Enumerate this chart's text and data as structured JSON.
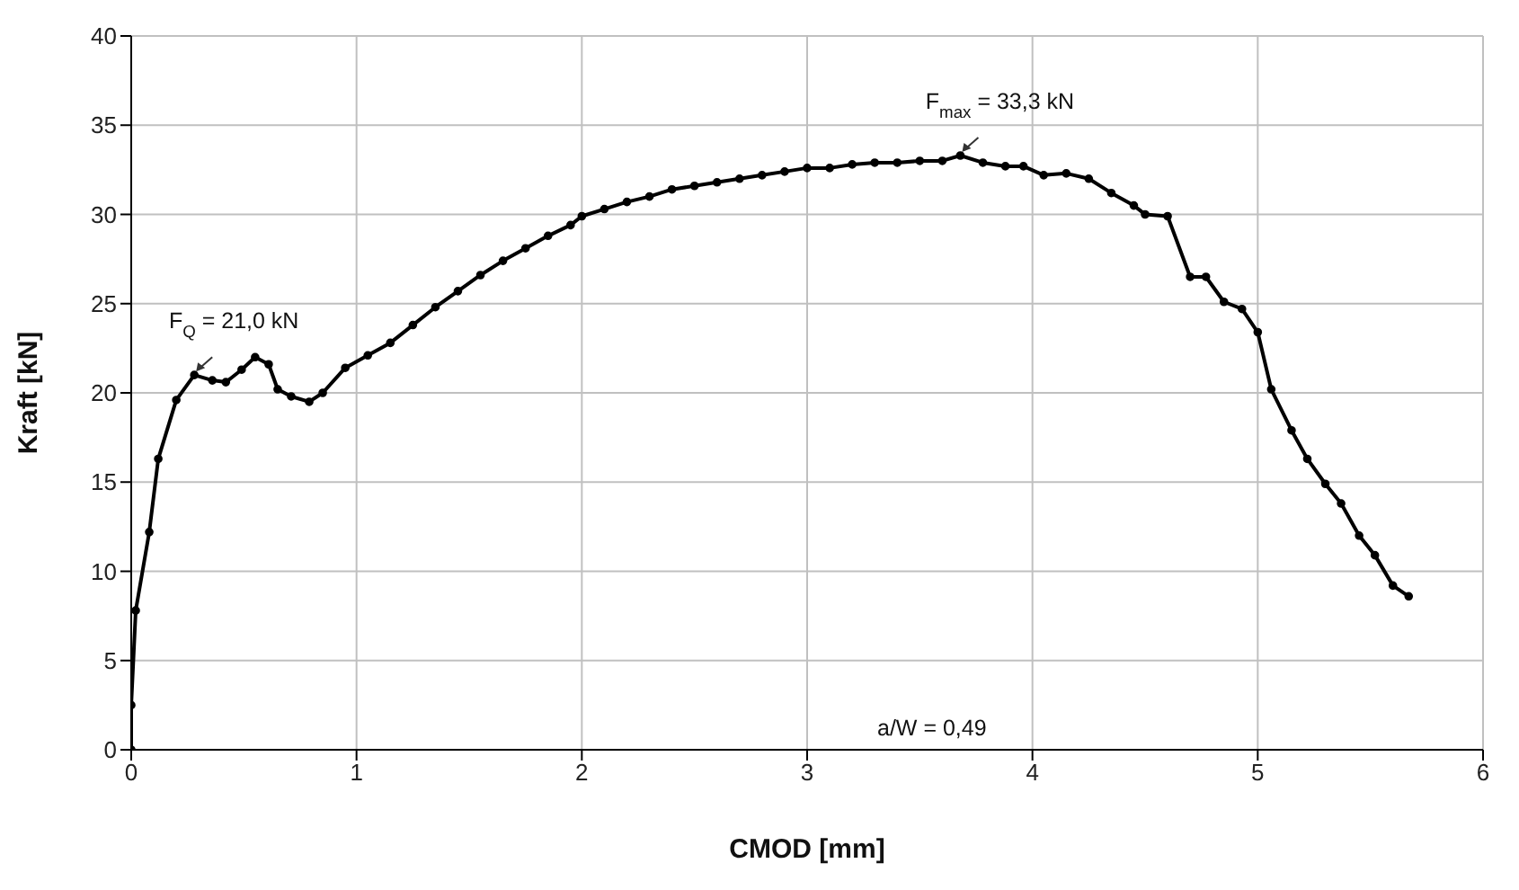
{
  "chart_data": {
    "type": "line",
    "xlabel": "CMOD [mm]",
    "ylabel": "Kraft [kN]",
    "xlim": [
      0,
      6
    ],
    "xticks": [
      0,
      1,
      2,
      3,
      4,
      5,
      6
    ],
    "ylim": [
      0,
      40
    ],
    "yticks": [
      0,
      5,
      10,
      15,
      20,
      25,
      30,
      35,
      40
    ],
    "grid": true,
    "marker": "circle",
    "line_style": "solid",
    "x": [
      0,
      0,
      0.02,
      0.08,
      0.12,
      0.2,
      0.28,
      0.36,
      0.42,
      0.49,
      0.55,
      0.61,
      0.65,
      0.71,
      0.79,
      0.85,
      0.95,
      1.05,
      1.15,
      1.25,
      1.35,
      1.45,
      1.55,
      1.65,
      1.75,
      1.85,
      1.95,
      2.0,
      2.1,
      2.2,
      2.3,
      2.4,
      2.5,
      2.6,
      2.7,
      2.8,
      2.9,
      3.0,
      3.1,
      3.2,
      3.3,
      3.4,
      3.5,
      3.6,
      3.68,
      3.78,
      3.88,
      3.96,
      4.05,
      4.15,
      4.25,
      4.35,
      4.45,
      4.5,
      4.6,
      4.7,
      4.77,
      4.85,
      4.93,
      5.0,
      5.06,
      5.15,
      5.22,
      5.3,
      5.37,
      5.45,
      5.52,
      5.6,
      5.67
    ],
    "series": [
      {
        "color": "#000000",
        "values": [
          0,
          2.5,
          7.8,
          12.2,
          16.3,
          19.6,
          21.0,
          20.7,
          20.6,
          21.3,
          22.0,
          21.6,
          20.2,
          19.8,
          19.5,
          20.0,
          21.4,
          22.1,
          22.8,
          23.8,
          24.8,
          25.7,
          26.6,
          27.4,
          28.1,
          28.8,
          29.4,
          29.9,
          30.3,
          30.7,
          31.0,
          31.4,
          31.6,
          31.8,
          32.0,
          32.2,
          32.4,
          32.6,
          32.6,
          32.8,
          32.9,
          32.9,
          33.0,
          33.0,
          33.3,
          32.9,
          32.7,
          32.7,
          32.2,
          32.3,
          32.0,
          31.2,
          30.5,
          30.0,
          29.9,
          26.5,
          26.5,
          25.1,
          24.7,
          23.4,
          20.2,
          17.9,
          16.3,
          14.9,
          13.8,
          12.0,
          10.9,
          9.2,
          8.6
        ]
      }
    ],
    "annotations": [
      {
        "text": "F$_{Q}$ = 21,0 kN",
        "x": 0.28,
        "y": 21.0
      },
      {
        "text": "F$_{max}$ = 33,3 kN",
        "x": 3.68,
        "y": 33.3
      },
      "a/W = 0,49"
    ]
  }
}
